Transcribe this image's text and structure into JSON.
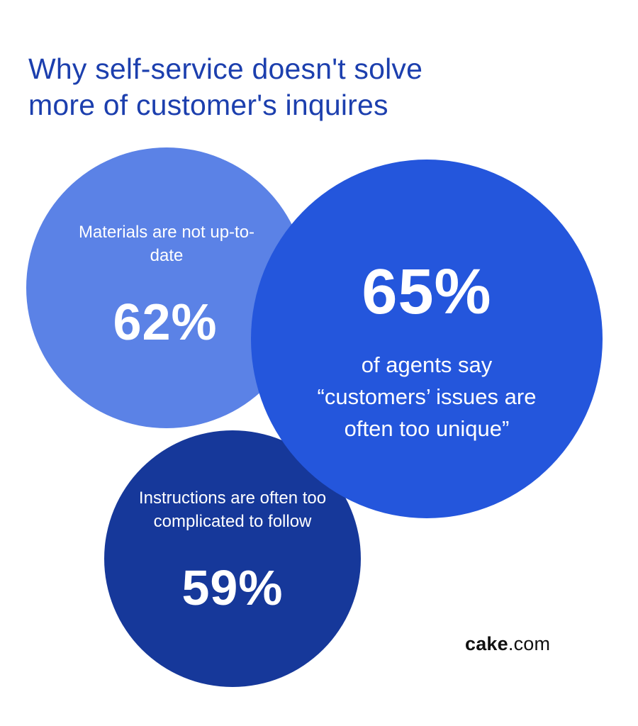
{
  "title": {
    "line1": "Why self-service doesn't solve",
    "line2": "more of customer's inquires"
  },
  "bubbles": [
    {
      "id": "materials",
      "label": "Materials are not up-to-date",
      "value_text": "62%",
      "color": "#5b82e6"
    },
    {
      "id": "unique",
      "value_text": "65%",
      "label_line1": "of agents say",
      "label_line2": "“customers’ issues are",
      "label_line3": "often too unique”",
      "color": "#2456dc"
    },
    {
      "id": "instructions",
      "label": "Instructions are often too complicated to follow",
      "value_text": "59%",
      "color": "#16389a"
    }
  ],
  "brand": {
    "bold": "cake",
    "rest": ".com"
  },
  "colors": {
    "title": "#1c3fae",
    "background": "#ffffff"
  },
  "chart_data": {
    "type": "bubble",
    "title": "Why self-service doesn't solve more of customer's inquires",
    "categories": [
      "Materials are not up-to-date",
      "Customers' issues are often too unique",
      "Instructions are often too complicated to follow"
    ],
    "values": [
      62,
      65,
      59
    ],
    "unit": "% of agents",
    "legend": null,
    "source": "cake.com"
  }
}
